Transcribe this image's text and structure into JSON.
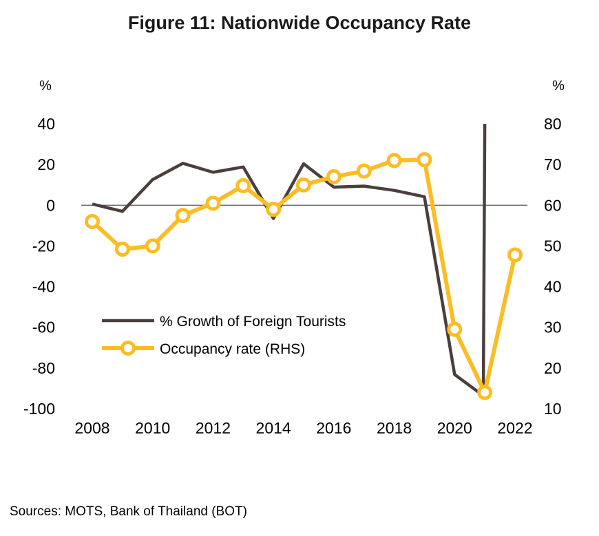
{
  "chart_data": {
    "type": "line",
    "title": "Figure 11: Nationwide Occupancy Rate",
    "y_left_unit": "%",
    "y_right_unit": "%",
    "y_left_lim": [
      -100,
      40
    ],
    "y_right_lim": [
      10,
      80
    ],
    "y_left_ticks": [
      40,
      20,
      0,
      -20,
      -40,
      -60,
      -80,
      -100
    ],
    "y_right_ticks": [
      80,
      70,
      60,
      50,
      40,
      30,
      20,
      10
    ],
    "x_ticks": [
      2008,
      2010,
      2012,
      2014,
      2016,
      2018,
      2020,
      2022
    ],
    "x_lim": [
      2008,
      2022
    ],
    "legend_position": "lower-left",
    "grid": false,
    "series": [
      {
        "name": "% Growth of Foreign Tourists",
        "axis": "left",
        "color": "#4a3f3d",
        "marker": "none",
        "points": [
          {
            "x": 2008,
            "y": 0.6
          },
          {
            "x": 2009,
            "y": -3
          },
          {
            "x": 2010,
            "y": 12.6
          },
          {
            "x": 2011,
            "y": 20.6
          },
          {
            "x": 2012,
            "y": 16.2
          },
          {
            "x": 2013,
            "y": 18.8
          },
          {
            "x": 2014,
            "y": -6.5
          },
          {
            "x": 2015,
            "y": 20.4
          },
          {
            "x": 2016,
            "y": 8.9
          },
          {
            "x": 2017,
            "y": 9.4
          },
          {
            "x": 2018,
            "y": 7.3
          },
          {
            "x": 2019,
            "y": 4.2
          },
          {
            "x": 2020,
            "y": -83.2
          },
          {
            "x": 2020.95,
            "y": -93.6
          },
          {
            "x": 2021,
            "y": 40
          }
        ]
      },
      {
        "name": "Occupancy rate (RHS)",
        "axis": "right",
        "color": "#fbbd23",
        "marker": "circle",
        "points": [
          {
            "x": 2008,
            "y": 56
          },
          {
            "x": 2009,
            "y": 49.2
          },
          {
            "x": 2010,
            "y": 50
          },
          {
            "x": 2011,
            "y": 57.5
          },
          {
            "x": 2012,
            "y": 60.5
          },
          {
            "x": 2013,
            "y": 64.8
          },
          {
            "x": 2014,
            "y": 59
          },
          {
            "x": 2015,
            "y": 65
          },
          {
            "x": 2016,
            "y": 67
          },
          {
            "x": 2017,
            "y": 68.4
          },
          {
            "x": 2018,
            "y": 71
          },
          {
            "x": 2019,
            "y": 71.2
          },
          {
            "x": 2020,
            "y": 29.5
          },
          {
            "x": 2021,
            "y": 14
          },
          {
            "x": 2022,
            "y": 47.8
          }
        ]
      }
    ]
  },
  "source": "Sources: MOTS, Bank of Thailand (BOT)",
  "colors": {
    "zero_line": "#555555",
    "marker_fill": "#ffffff"
  }
}
